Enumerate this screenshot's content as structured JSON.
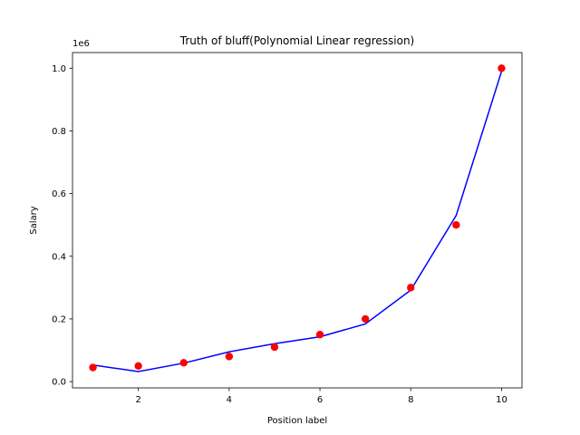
{
  "chart_data": {
    "type": "scatter",
    "title": "Truth of bluff(Polynomial Linear regression)",
    "xlabel": "Position label",
    "ylabel": "Salary",
    "offset_text": "1e6",
    "xlim": [
      0.55,
      10.45
    ],
    "ylim": [
      -0.02,
      1.05
    ],
    "x_ticks": [
      2,
      4,
      6,
      8,
      10
    ],
    "x_tick_labels": [
      "2",
      "4",
      "6",
      "8",
      "10"
    ],
    "y_ticks": [
      0.0,
      0.2,
      0.4,
      0.6,
      0.8,
      1.0
    ],
    "y_tick_labels": [
      "0.0",
      "0.2",
      "0.4",
      "0.6",
      "0.8",
      "1.0"
    ],
    "grid": false,
    "series": [
      {
        "kind": "scatter",
        "color": "#ff0000",
        "x": [
          1,
          2,
          3,
          4,
          5,
          6,
          7,
          8,
          9,
          10
        ],
        "y": [
          0.045,
          0.05,
          0.06,
          0.08,
          0.11,
          0.15,
          0.2,
          0.3,
          0.5,
          1.0
        ]
      },
      {
        "kind": "line",
        "color": "#0000ff",
        "x": [
          1,
          2,
          3,
          4,
          5,
          6,
          7,
          8,
          9,
          10
        ],
        "y": [
          0.053,
          0.032,
          0.059,
          0.095,
          0.121,
          0.143,
          0.184,
          0.292,
          0.53,
          0.99
        ]
      }
    ]
  }
}
